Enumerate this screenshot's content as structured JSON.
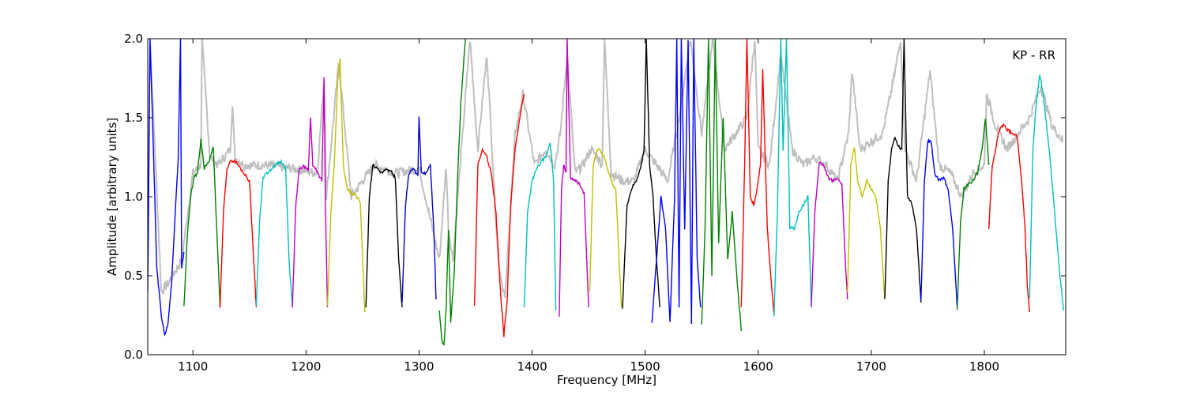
{
  "chart_data": {
    "type": "line",
    "title": "",
    "annotation": "KP - RR",
    "xlabel": "Frequency [MHz]",
    "ylabel": "Amplitude [arbitrary units]",
    "xlim": [
      1060,
      1872
    ],
    "ylim": [
      0.0,
      2.0
    ],
    "xticks": [
      1100,
      1200,
      1300,
      1400,
      1500,
      1600,
      1700,
      1800
    ],
    "yticks": [
      0.0,
      0.5,
      1.0,
      1.5,
      2.0
    ],
    "xtick_labels": [
      "1100",
      "1200",
      "1300",
      "1400",
      "1500",
      "1600",
      "1700",
      "1800"
    ],
    "ytick_labels": [
      "0.0",
      "0.5",
      "1.0",
      "1.5",
      "2.0"
    ],
    "grid": false,
    "background_trace_color": "#bfbfbf",
    "series": [
      {
        "color": "#0000ff",
        "x": [
          1060,
          1062,
          1065,
          1068,
          1072,
          1075,
          1078,
          1081,
          1084,
          1087,
          1089,
          1090,
          1092
        ],
        "y": [
          0.4,
          2.0,
          1.3,
          0.55,
          0.25,
          0.12,
          0.2,
          0.45,
          0.85,
          1.25,
          2.0,
          0.55,
          0.65
        ]
      },
      {
        "color": "#008000",
        "x": [
          1092,
          1095,
          1098,
          1101,
          1104,
          1107,
          1110,
          1114,
          1118,
          1121,
          1124
        ],
        "y": [
          0.3,
          0.75,
          1.0,
          1.12,
          1.15,
          1.36,
          1.18,
          1.22,
          1.32,
          0.8,
          0.3
        ]
      },
      {
        "color": "#ff0000",
        "x": [
          1124,
          1127,
          1130,
          1134,
          1138,
          1142,
          1146,
          1150,
          1153,
          1156
        ],
        "y": [
          0.3,
          0.9,
          1.18,
          1.23,
          1.22,
          1.18,
          1.14,
          1.1,
          0.7,
          0.3
        ]
      },
      {
        "color": "#00bfbf",
        "x": [
          1156,
          1159,
          1162,
          1166,
          1170,
          1174,
          1178,
          1182,
          1185,
          1188
        ],
        "y": [
          0.3,
          0.85,
          1.12,
          1.15,
          1.18,
          1.21,
          1.22,
          1.18,
          0.6,
          0.3
        ]
      },
      {
        "color": "#bf00bf",
        "x": [
          1188,
          1191,
          1194,
          1198,
          1202,
          1204,
          1206,
          1210,
          1214,
          1216,
          1217,
          1219
        ],
        "y": [
          0.3,
          0.95,
          1.18,
          1.19,
          1.17,
          1.5,
          1.2,
          1.16,
          1.1,
          1.75,
          1.0,
          0.3
        ]
      },
      {
        "color": "#bfbf00",
        "x": [
          1219,
          1222,
          1225,
          1228,
          1230,
          1233,
          1236,
          1240,
          1244,
          1248,
          1252
        ],
        "y": [
          0.3,
          0.9,
          1.2,
          1.72,
          1.88,
          1.2,
          1.06,
          1.02,
          1.01,
          0.97,
          0.27
        ]
      },
      {
        "color": "#000000",
        "x": [
          1253,
          1256,
          1259,
          1263,
          1267,
          1271,
          1275,
          1279,
          1282,
          1285
        ],
        "y": [
          0.3,
          1.0,
          1.2,
          1.18,
          1.15,
          1.17,
          1.16,
          1.12,
          0.6,
          0.3
        ]
      },
      {
        "color": "#0000cc",
        "x": [
          1285,
          1288,
          1291,
          1295,
          1299,
          1300,
          1302,
          1306,
          1310,
          1313,
          1315
        ],
        "y": [
          0.32,
          0.95,
          1.15,
          1.18,
          1.13,
          1.5,
          1.15,
          1.15,
          1.2,
          0.8,
          0.35
        ]
      },
      {
        "color": "#008000",
        "x": [
          1318,
          1320,
          1322,
          1324,
          1326,
          1328,
          1331,
          1334,
          1337,
          1341,
          1344
        ],
        "y": [
          0.28,
          0.1,
          0.05,
          0.3,
          0.8,
          0.2,
          0.5,
          1.1,
          1.6,
          2.0,
          2.0
        ]
      },
      {
        "color": "#ff0000",
        "x": [
          1349,
          1352,
          1356,
          1360,
          1364,
          1368,
          1372,
          1375,
          1378,
          1381,
          1385,
          1389,
          1393
        ],
        "y": [
          0.3,
          1.2,
          1.3,
          1.25,
          1.15,
          0.9,
          0.4,
          0.12,
          0.35,
          0.95,
          1.3,
          1.5,
          1.65
        ]
      },
      {
        "color": "#00bfbf",
        "x": [
          1393,
          1396,
          1400,
          1404,
          1408,
          1412,
          1416,
          1419,
          1421
        ],
        "y": [
          0.3,
          0.9,
          1.1,
          1.18,
          1.22,
          1.25,
          1.35,
          1.1,
          0.28
        ]
      },
      {
        "color": "#bf00bf",
        "x": [
          1424,
          1426,
          1428,
          1430,
          1431,
          1434,
          1438,
          1442,
          1446,
          1450
        ],
        "y": [
          0.25,
          1.05,
          1.2,
          1.15,
          2.0,
          1.12,
          1.1,
          1.08,
          1.02,
          0.3
        ]
      },
      {
        "color": "#bfbf00",
        "x": [
          1451,
          1454,
          1458,
          1462,
          1466,
          1470,
          1474,
          1477,
          1479
        ],
        "y": [
          0.4,
          1.2,
          1.3,
          1.28,
          1.2,
          1.1,
          1.05,
          0.6,
          0.3
        ]
      },
      {
        "color": "#000000",
        "x": [
          1480,
          1484,
          1488,
          1492,
          1496,
          1499,
          1501,
          1504,
          1507,
          1510,
          1513
        ],
        "y": [
          0.3,
          0.95,
          1.05,
          1.1,
          1.18,
          1.3,
          2.0,
          1.2,
          1.0,
          0.6,
          0.3
        ]
      },
      {
        "color": "#0000ff",
        "x": [
          1506,
          1510,
          1514,
          1518,
          1522,
          1526,
          1528,
          1530,
          1532,
          1535,
          1538,
          1541,
          1543,
          1546,
          1549
        ],
        "y": [
          0.2,
          0.6,
          1.0,
          0.8,
          0.2,
          1.0,
          2.0,
          0.3,
          2.0,
          0.8,
          2.0,
          0.2,
          2.0,
          0.6,
          0.3
        ]
      },
      {
        "color": "#008000",
        "x": [
          1550,
          1553,
          1556,
          1559,
          1562,
          1565,
          1569,
          1573,
          1577,
          1581,
          1585
        ],
        "y": [
          0.2,
          0.8,
          2.0,
          0.5,
          2.0,
          0.7,
          1.5,
          0.6,
          0.9,
          0.5,
          0.15
        ]
      },
      {
        "color": "#ff0000",
        "x": [
          1585,
          1588,
          1590,
          1593,
          1596,
          1599,
          1602,
          1604,
          1606,
          1608,
          1611,
          1614
        ],
        "y": [
          0.3,
          1.2,
          2.0,
          1.0,
          0.95,
          1.05,
          1.2,
          1.8,
          1.3,
          0.8,
          0.5,
          0.25
        ]
      },
      {
        "color": "#00bfbf",
        "x": [
          1614,
          1617,
          1620,
          1622,
          1625,
          1628,
          1632,
          1636,
          1640,
          1644,
          1647
        ],
        "y": [
          0.25,
          0.9,
          2.0,
          1.3,
          2.0,
          0.8,
          0.8,
          0.9,
          0.95,
          1.0,
          0.3
        ]
      },
      {
        "color": "#bf00bf",
        "x": [
          1647,
          1650,
          1654,
          1658,
          1662,
          1666,
          1670,
          1674,
          1677,
          1679
        ],
        "y": [
          0.3,
          0.9,
          1.22,
          1.2,
          1.12,
          1.1,
          1.12,
          1.08,
          0.6,
          0.35
        ]
      },
      {
        "color": "#bfbf00",
        "x": [
          1679,
          1682,
          1685,
          1688,
          1692,
          1696,
          1700,
          1704,
          1708,
          1712
        ],
        "y": [
          0.4,
          1.2,
          1.32,
          1.1,
          1.0,
          1.1,
          1.05,
          1.0,
          0.8,
          0.35
        ]
      },
      {
        "color": "#000000",
        "x": [
          1712,
          1715,
          1718,
          1721,
          1724,
          1727,
          1729,
          1732,
          1736,
          1740,
          1744
        ],
        "y": [
          0.35,
          1.1,
          1.3,
          1.38,
          1.32,
          1.3,
          2.0,
          1.0,
          0.95,
          0.8,
          0.33
        ]
      },
      {
        "color": "#0000ff",
        "x": [
          1744,
          1747,
          1750,
          1753,
          1756,
          1760,
          1764,
          1768,
          1772,
          1776
        ],
        "y": [
          0.35,
          1.1,
          1.35,
          1.35,
          1.15,
          1.1,
          1.12,
          1.05,
          0.8,
          0.3
        ]
      },
      {
        "color": "#008000",
        "x": [
          1776,
          1779,
          1782,
          1786,
          1790,
          1794,
          1798,
          1801,
          1804
        ],
        "y": [
          0.28,
          0.85,
          1.05,
          1.08,
          1.1,
          1.15,
          1.3,
          1.5,
          1.2
        ]
      },
      {
        "color": "#ff0000",
        "x": [
          1804,
          1807,
          1810,
          1813,
          1817,
          1821,
          1825,
          1829,
          1833,
          1836,
          1838,
          1840
        ],
        "y": [
          0.8,
          1.2,
          1.3,
          1.42,
          1.45,
          1.42,
          1.4,
          1.38,
          1.1,
          0.8,
          0.45,
          0.27
        ]
      },
      {
        "color": "#00bfbf",
        "x": [
          1840,
          1843,
          1846,
          1849,
          1852,
          1855,
          1858,
          1861,
          1864,
          1867,
          1870
        ],
        "y": [
          0.35,
          1.3,
          1.6,
          1.78,
          1.65,
          1.45,
          1.25,
          1.0,
          0.75,
          0.5,
          0.28
        ]
      }
    ],
    "background_trace": {
      "x": [
        1060,
        1062,
        1072,
        1078,
        1090,
        1100,
        1107,
        1108,
        1115,
        1122,
        1133,
        1135,
        1137,
        1145,
        1165,
        1185,
        1195,
        1210,
        1216,
        1218,
        1229,
        1240,
        1260,
        1280,
        1300,
        1318,
        1324,
        1326,
        1330,
        1345,
        1352,
        1360,
        1370,
        1376,
        1385,
        1392,
        1402,
        1412,
        1420,
        1425,
        1431,
        1438,
        1445,
        1452,
        1458,
        1462,
        1464,
        1470,
        1480,
        1490,
        1500,
        1510,
        1520,
        1530,
        1540,
        1550,
        1560,
        1570,
        1580,
        1590,
        1597,
        1600,
        1610,
        1620,
        1630,
        1640,
        1650,
        1660,
        1670,
        1680,
        1683,
        1690,
        1700,
        1710,
        1720,
        1726,
        1730,
        1740,
        1752,
        1760,
        1770,
        1780,
        1790,
        1800,
        1802,
        1810,
        1820,
        1830,
        1840,
        1850,
        1860,
        1870
      ],
      "y": [
        0.6,
        2.0,
        0.4,
        0.45,
        0.6,
        1.15,
        1.2,
        2.0,
        1.25,
        1.2,
        1.3,
        1.6,
        1.25,
        1.2,
        1.2,
        1.18,
        1.17,
        1.15,
        1.75,
        1.0,
        1.85,
        1.0,
        1.2,
        1.15,
        1.18,
        0.6,
        1.2,
        0.8,
        0.6,
        2.0,
        1.3,
        1.9,
        0.6,
        0.35,
        1.4,
        1.65,
        1.2,
        1.3,
        1.2,
        1.4,
        1.9,
        1.15,
        1.2,
        1.3,
        1.25,
        1.2,
        2.0,
        1.15,
        1.1,
        1.1,
        1.3,
        1.2,
        1.1,
        1.5,
        2.0,
        1.4,
        2.0,
        1.3,
        1.4,
        1.5,
        2.0,
        1.3,
        1.2,
        1.9,
        1.3,
        1.2,
        1.25,
        1.2,
        1.1,
        1.4,
        1.8,
        1.3,
        1.35,
        1.4,
        1.75,
        2.0,
        1.3,
        1.1,
        1.8,
        1.2,
        1.15,
        1.0,
        1.15,
        1.2,
        1.65,
        1.45,
        1.3,
        1.4,
        1.5,
        1.7,
        1.45,
        1.35
      ]
    }
  }
}
